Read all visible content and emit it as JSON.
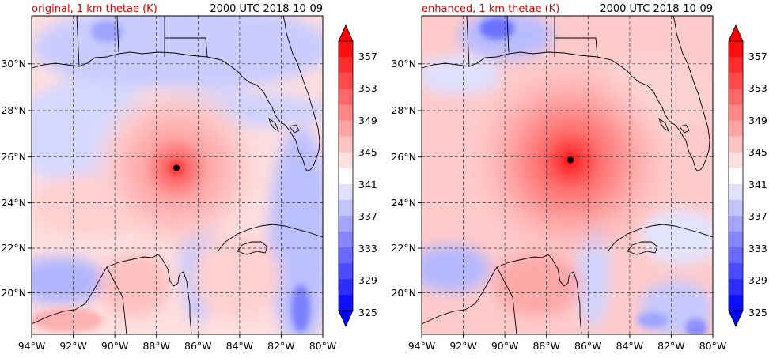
{
  "figure": {
    "panels": [
      {
        "title_left": "original, 1 km thetae (K)",
        "title_right": "2000 UTC 2018-10-09"
      },
      {
        "title_left": "enhanced, 1 km thetae (K)",
        "title_right": "2000 UTC 2018-10-09"
      }
    ],
    "title_left_color": "#e00000",
    "title_right_color": "#000000"
  },
  "chart_data": [
    {
      "type": "heatmap",
      "field": "1 km thetae",
      "units": "K",
      "x_ticks": [
        "94°W",
        "92°W",
        "90°W",
        "88°W",
        "86°W",
        "84°W",
        "82°W",
        "80°W"
      ],
      "y_ticks": [
        "20°N",
        "22°N",
        "24°N",
        "26°N",
        "28°N",
        "30°N"
      ],
      "xlim": [
        -94,
        -80
      ],
      "ylim": [
        18.2,
        32.0
      ],
      "x_tick_values": [
        -94,
        -92,
        -90,
        -88,
        -86,
        -84,
        -82,
        -80
      ],
      "y_tick_values": [
        20,
        22,
        24,
        26,
        28,
        30
      ],
      "grid": true,
      "storm_center": {
        "lon": -87.1,
        "lat": 25.5
      },
      "colorbar": {
        "tick_labels": [
          "325",
          "329",
          "333",
          "337",
          "341",
          "345",
          "349",
          "353",
          "357"
        ],
        "levels": [
          325,
          327,
          329,
          331,
          333,
          335,
          337,
          339,
          341,
          343,
          345,
          347,
          349,
          351,
          353,
          355,
          357,
          359
        ],
        "extend": "both",
        "colormap": "bwr"
      }
    },
    {
      "type": "heatmap",
      "field": "1 km thetae",
      "units": "K",
      "x_ticks": [
        "94°W",
        "92°W",
        "90°W",
        "88°W",
        "86°W",
        "84°W",
        "82°W",
        "80°W"
      ],
      "y_ticks": [
        "20°N",
        "22°N",
        "24°N",
        "26°N",
        "28°N",
        "30°N"
      ],
      "xlim": [
        -94,
        -80
      ],
      "ylim": [
        18.2,
        32.0
      ],
      "x_tick_values": [
        -94,
        -92,
        -90,
        -88,
        -86,
        -84,
        -82,
        -80
      ],
      "y_tick_values": [
        20,
        22,
        24,
        26,
        28,
        30
      ],
      "grid": true,
      "storm_center": {
        "lon": -86.9,
        "lat": 25.9
      },
      "colorbar": {
        "tick_labels": [
          "325",
          "329",
          "333",
          "337",
          "341",
          "345",
          "349",
          "353",
          "357"
        ],
        "levels": [
          325,
          327,
          329,
          331,
          333,
          335,
          337,
          339,
          341,
          343,
          345,
          347,
          349,
          351,
          353,
          355,
          357,
          359
        ],
        "extend": "both",
        "colormap": "bwr"
      }
    }
  ]
}
